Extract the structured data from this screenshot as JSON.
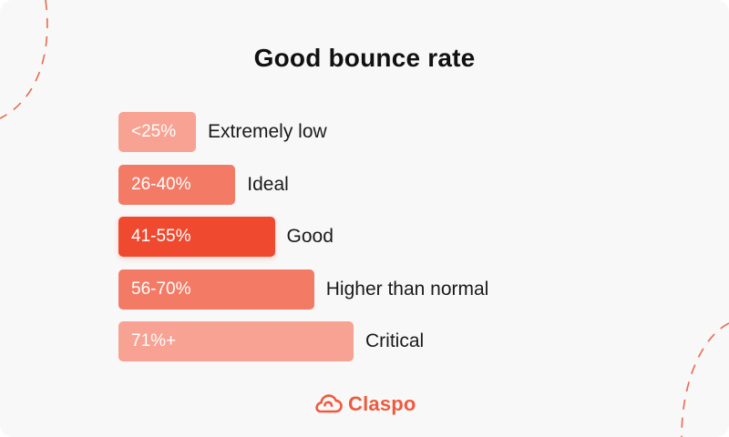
{
  "chart_data": {
    "type": "bar",
    "title": "Good bounce rate",
    "orientation": "horizontal",
    "categories": [
      "<25%",
      "26-40%",
      "41-55%",
      "56-70%",
      "71%+"
    ],
    "labels": [
      "Extremely low",
      "Ideal",
      "Good",
      "Higher than normal",
      "Critical"
    ],
    "values": [
      1,
      2,
      3,
      4,
      5
    ],
    "colors": [
      "#f8a293",
      "#f37b66",
      "#ef4a2f",
      "#f37b66",
      "#f8a293"
    ],
    "highlight_index": 2
  },
  "brand": {
    "name": "Claspo",
    "color": "#ef5a3e",
    "icon": "cloud-logo-icon",
    "deco_color": "#e9694f"
  }
}
